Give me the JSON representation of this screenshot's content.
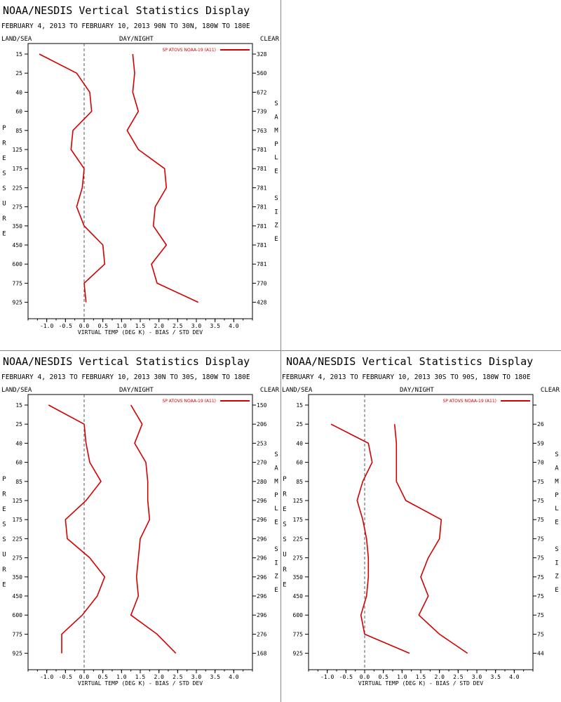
{
  "panels": [
    {
      "title": "NOAA/NESDIS Vertical Statistics Display",
      "subtitle": "FEBRUARY 4, 2013 TO FEBRUARY 10, 2013 90N TO 30N, 180W TO 180E",
      "hdr_left": "LAND/SEA",
      "hdr_center": "DAY/NIGHT",
      "hdr_right": "CLEAR"
    },
    {
      "title": "NOAA/NESDIS Vertical Statistics Display",
      "subtitle": "FEBRUARY 4, 2013 TO FEBRUARY 10, 2013 30N TO 30S, 180W TO 180E",
      "hdr_left": "LAND/SEA",
      "hdr_center": "DAY/NIGHT",
      "hdr_right": "CLEAR"
    },
    {
      "title": "NOAA/NESDIS Vertical Statistics Display",
      "subtitle": "FEBRUARY 4, 2013 TO FEBRUARY 10, 2013 30S TO 90S, 180W TO 180E",
      "hdr_left": "LAND/SEA",
      "hdr_center": "DAY/NIGHT",
      "hdr_right": "CLEAR"
    }
  ],
  "chart_data": [
    {
      "type": "line",
      "xlabel": "VIRTUAL TEMP (DEG K) - BIAS / STD DEV",
      "ylabel": "PRESSURE",
      "y2label": "SAMPLE SIZE",
      "xlim": [
        -1.5,
        4.5
      ],
      "x_ticks": [
        "-1.0",
        "-0.5",
        "0.0",
        "0.5",
        "1.0",
        "1.5",
        "2.0",
        "2.5",
        "3.0",
        "3.5",
        "4.0"
      ],
      "pressure_levels": [
        "15",
        "25",
        "40",
        "60",
        "85",
        "125",
        "175",
        "225",
        "275",
        "350",
        "450",
        "600",
        "775",
        "925"
      ],
      "sample_size": [
        "328",
        "560",
        "672",
        "739",
        "763",
        "781",
        "781",
        "781",
        "781",
        "781",
        "781",
        "781",
        "770",
        "428"
      ],
      "legend_position": "top-right",
      "line_color": "#d40000",
      "series": [
        {
          "name": "SP ATOVS NOAA-19 (A11)",
          "role": "bias",
          "values": [
            -1.2,
            -0.2,
            0.15,
            0.2,
            -0.3,
            -0.35,
            0.0,
            -0.05,
            -0.2,
            0.0,
            0.5,
            0.55,
            0.0,
            0.05
          ]
        },
        {
          "name": "",
          "role": "std_dev",
          "values": [
            1.3,
            1.35,
            1.3,
            1.45,
            1.15,
            1.45,
            2.15,
            2.2,
            1.9,
            1.85,
            2.2,
            1.8,
            1.95,
            3.05
          ]
        }
      ]
    },
    {
      "type": "line",
      "xlabel": "VIRTUAL TEMP (DEG K) - BIAS / STD DEV",
      "ylabel": "PRESSURE",
      "y2label": "SAMPLE SIZE",
      "xlim": [
        -1.5,
        4.5
      ],
      "x_ticks": [
        "-1.0",
        "-0.5",
        "0.0",
        "0.5",
        "1.0",
        "1.5",
        "2.0",
        "2.5",
        "3.0",
        "3.5",
        "4.0"
      ],
      "pressure_levels": [
        "15",
        "25",
        "40",
        "60",
        "85",
        "125",
        "175",
        "225",
        "275",
        "350",
        "450",
        "600",
        "775",
        "925"
      ],
      "sample_size": [
        "150",
        "206",
        "253",
        "270",
        "280",
        "296",
        "296",
        "296",
        "296",
        "296",
        "296",
        "296",
        "276",
        "168"
      ],
      "legend_position": "top-right",
      "line_color": "#d40000",
      "series": [
        {
          "name": "SP ATOVS NOAA-19 (A11)",
          "role": "bias",
          "values": [
            -0.95,
            0.0,
            0.05,
            0.15,
            0.45,
            0.05,
            -0.5,
            -0.45,
            0.15,
            0.55,
            0.35,
            -0.05,
            -0.6,
            -0.6
          ]
        },
        {
          "name": "",
          "role": "std_dev",
          "values": [
            1.25,
            1.55,
            1.35,
            1.65,
            1.7,
            1.7,
            1.75,
            1.5,
            1.45,
            1.4,
            1.45,
            1.25,
            1.95,
            2.45
          ]
        }
      ]
    },
    {
      "type": "line",
      "xlabel": "VIRTUAL TEMP (DEG K) - BIAS / STD DEV",
      "ylabel": "PRESSURE",
      "y2label": "SAMPLE SIZE",
      "xlim": [
        -1.5,
        4.5
      ],
      "x_ticks": [
        "-1.0",
        "-0.5",
        "0.0",
        "0.5",
        "1.0",
        "1.5",
        "2.0",
        "2.5",
        "3.0",
        "3.5",
        "4.0"
      ],
      "pressure_levels": [
        "15",
        "25",
        "40",
        "60",
        "85",
        "125",
        "175",
        "225",
        "275",
        "350",
        "450",
        "600",
        "775",
        "925"
      ],
      "sample_size": [
        "",
        "26",
        "59",
        "70",
        "75",
        "75",
        "75",
        "75",
        "75",
        "75",
        "75",
        "75",
        "75",
        "44"
      ],
      "legend_position": "top-right",
      "line_color": "#d40000",
      "series": [
        {
          "name": "SP ATOVS NOAA-19 (A11)",
          "role": "bias",
          "values": [
            null,
            -0.9,
            0.1,
            0.2,
            -0.05,
            -0.2,
            -0.05,
            0.05,
            0.1,
            0.1,
            0.05,
            -0.1,
            0.0,
            1.2
          ]
        },
        {
          "name": "",
          "role": "std_dev",
          "values": [
            null,
            0.8,
            0.85,
            0.85,
            0.85,
            1.1,
            2.05,
            2.0,
            1.7,
            1.5,
            1.7,
            1.45,
            2.0,
            2.75
          ]
        }
      ]
    }
  ]
}
